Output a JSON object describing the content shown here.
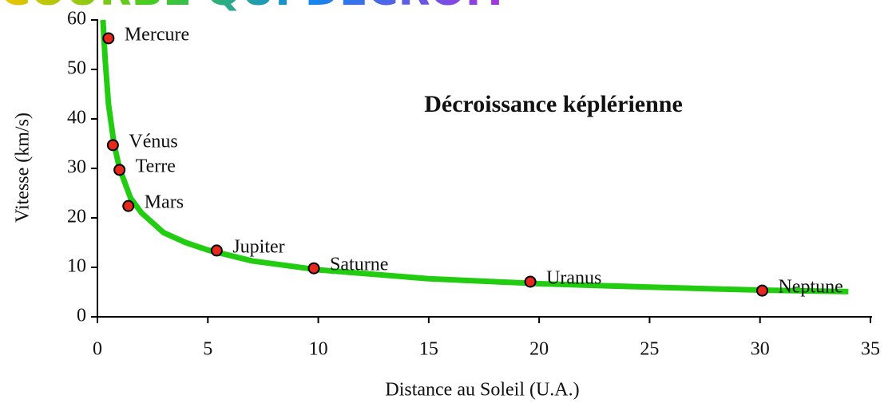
{
  "header": {
    "title": "COURBE QUI DÉCROIT"
  },
  "chart_data": {
    "type": "scatter",
    "title": "Décroissance képlérienne",
    "x_label": "Distance au Soleil (U.A.)",
    "y_label": "Vitesse (km/s)",
    "xlim": [
      0,
      35
    ],
    "xticks": [
      0,
      5,
      10,
      15,
      20,
      25,
      30,
      35
    ],
    "ylim": [
      0,
      60
    ],
    "yticks": [
      0,
      10,
      20,
      30,
      40,
      50,
      60
    ],
    "points": {
      "color": "#e8281c",
      "names": [
        "Mercure",
        "Vénus",
        "Terre",
        "Mars",
        "Jupiter",
        "Saturne",
        "Uranus",
        "Neptune"
      ],
      "x": [
        0.5,
        0.7,
        1,
        1.4,
        5.4,
        9.8,
        19.6,
        30.1
      ],
      "values": [
        56.3,
        34.7,
        29.7,
        22.4,
        13.4,
        9.8,
        7.1,
        5.3
      ]
    },
    "curve": {
      "color": "#22cc11",
      "x": [
        0.25,
        0.35,
        0.5,
        0.75,
        1,
        1.5,
        2,
        3,
        4,
        5,
        7,
        10,
        15,
        20,
        25,
        30,
        34
      ],
      "values": [
        60,
        52,
        43,
        35,
        30,
        24,
        21,
        17,
        15,
        13.5,
        11.3,
        9.5,
        7.7,
        6.7,
        6,
        5.4,
        5.1
      ]
    }
  }
}
